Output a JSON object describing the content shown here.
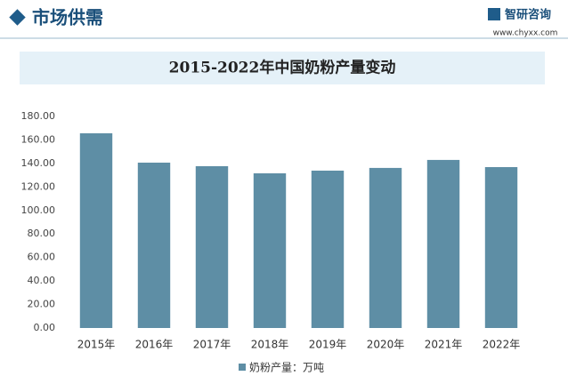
{
  "header": {
    "section": "市场供需",
    "brand": "智研咨询",
    "site": "www.chyxx.com"
  },
  "chart_data": {
    "type": "bar",
    "title": "2015-2022年中国奶粉产量变动",
    "categories": [
      "2015年",
      "2016年",
      "2017年",
      "2018年",
      "2019年",
      "2020年",
      "2021年",
      "2022年"
    ],
    "series": [
      {
        "name": "奶粉产量：万吨",
        "color": "#5e8ea5",
        "values": [
          165.7,
          140.7,
          137.7,
          131.6,
          133.9,
          136.2,
          143.0,
          136.9
        ]
      }
    ],
    "ylim": [
      0,
      180
    ],
    "yticks": [
      {
        "value": 0,
        "label": "0.00"
      },
      {
        "value": 20,
        "label": "20.00"
      },
      {
        "value": 40,
        "label": "40.00"
      },
      {
        "value": 60,
        "label": "60.00"
      },
      {
        "value": 80,
        "label": "80.00"
      },
      {
        "value": 100,
        "label": "100.00"
      },
      {
        "value": 120,
        "label": "120.00"
      },
      {
        "value": 140,
        "label": "140.00"
      },
      {
        "value": 160,
        "label": "160.00"
      },
      {
        "value": 180,
        "label": "180.00"
      }
    ],
    "grid": false
  }
}
